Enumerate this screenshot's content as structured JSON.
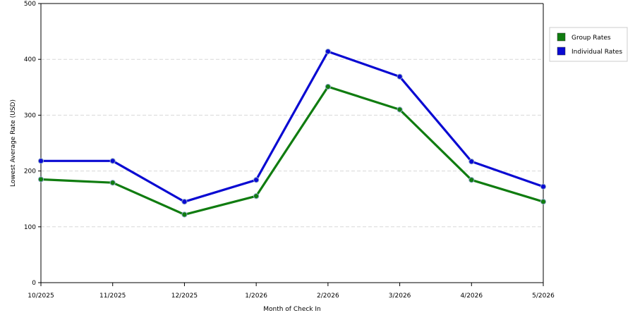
{
  "chart_data": {
    "type": "line",
    "xlabel": "Month of Check In",
    "ylabel": "Lowest Average Rate (USD)",
    "categories": [
      "10/2025",
      "11/2025",
      "12/2025",
      "1/2026",
      "2/2026",
      "3/2026",
      "4/2026",
      "5/2026"
    ],
    "ylim": [
      0,
      500
    ],
    "yticks": [
      0,
      100,
      200,
      300,
      400,
      500
    ],
    "grid": true,
    "legend_position": "top-right",
    "series": [
      {
        "name": "Group Rates",
        "color": "#107c10",
        "values": [
          185,
          179,
          122,
          155,
          351,
          310,
          184,
          145
        ]
      },
      {
        "name": "Individual Rates",
        "color": "#0a0ad2",
        "values": [
          218,
          218,
          145,
          184,
          414,
          369,
          217,
          172
        ]
      }
    ]
  }
}
